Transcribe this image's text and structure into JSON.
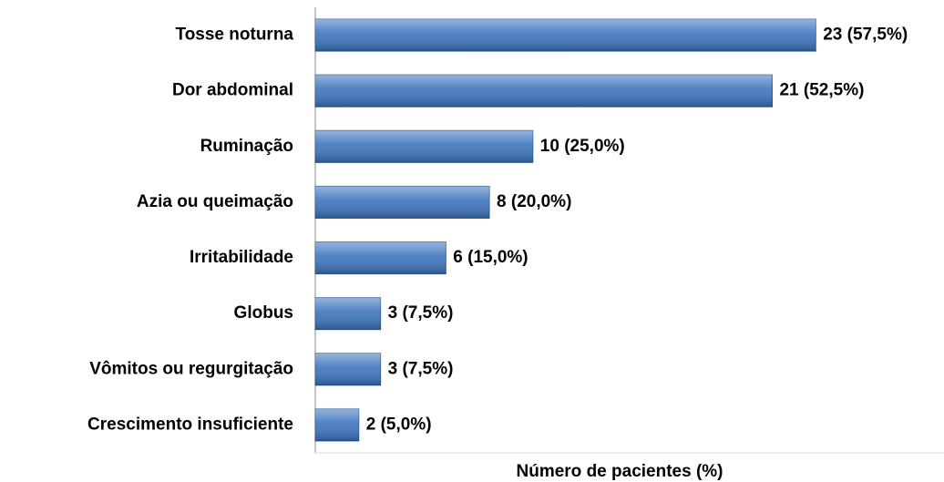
{
  "chart_data": {
    "type": "bar",
    "orientation": "horizontal",
    "x_label": "Número de pacientes (%)",
    "categories": [
      "Tosse noturna",
      "Dor abdominal",
      "Ruminação",
      "Azia ou queimação",
      "Irritabilidade",
      "Globus",
      "Vômitos ou regurgitação",
      "Crescimento insuficiente"
    ],
    "values": [
      23,
      21,
      10,
      8,
      6,
      3,
      3,
      2
    ],
    "value_labels": [
      "23 (57,5%)",
      "21 (52,5%)",
      "10 (25,0%)",
      "8 (20,0%)",
      "6 (15,0%)",
      "3 (7,5%)",
      "3 (7,5%)",
      "2 (5,0%)"
    ],
    "color": "#3d75be",
    "xlim": [
      0,
      25
    ]
  }
}
